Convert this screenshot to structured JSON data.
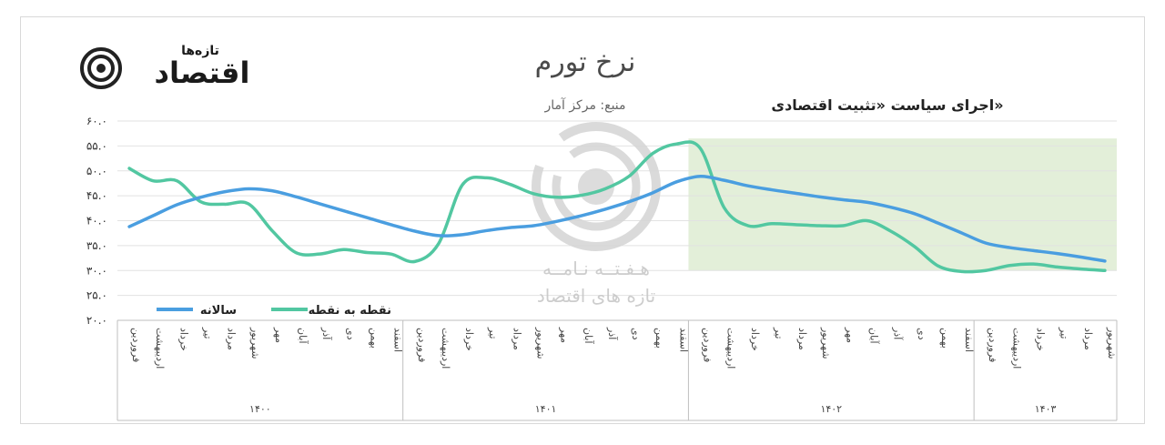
{
  "chart_data": {
    "type": "line",
    "title": "نرخ تورم",
    "subtitle": "منبع: مرکز آمار",
    "annotation": "اجرای سیاست «تثبیت اقتصادی»",
    "ylim": [
      20,
      60
    ],
    "yticks": [
      "۲۰.۰",
      "۲۵.۰",
      "۳۰.۰",
      "۳۵.۰",
      "۴۰.۰",
      "۴۵.۰",
      "۵۰.۰",
      "۵۵.۰",
      "۶۰.۰"
    ],
    "categories": [
      "فروردین",
      "اردیبهشت",
      "خرداد",
      "تیر",
      "مرداد",
      "شهریور",
      "مهر",
      "آبان",
      "آذر",
      "دی",
      "بهمن",
      "اسفند",
      "فروردین",
      "اردیبهشت",
      "خرداد",
      "تیر",
      "مرداد",
      "شهریور",
      "مهر",
      "آبان",
      "آذر",
      "دی",
      "بهمن",
      "اسفند",
      "فروردین",
      "اردیبهشت",
      "خرداد",
      "تیر",
      "مرداد",
      "شهریور",
      "مهر",
      "آبان",
      "آذر",
      "دی",
      "بهمن",
      "اسفند",
      "فروردین",
      "اردیبهشت",
      "خرداد",
      "تیر",
      "مرداد",
      "شهریور"
    ],
    "groups": [
      {
        "label": "۱۴۰۰",
        "count": 12
      },
      {
        "label": "۱۴۰۱",
        "count": 12
      },
      {
        "label": "۱۴۰۲",
        "count": 12
      },
      {
        "label": "۱۴۰۳",
        "count": 6
      }
    ],
    "highlight": {
      "from_index": 24,
      "to_index": 41,
      "color": "#e3efd9"
    },
    "series": [
      {
        "name": "سالانه",
        "color": "#4a9ee0",
        "values": [
          38.8,
          41.0,
          43.2,
          44.7,
          45.8,
          46.4,
          46.0,
          44.8,
          43.4,
          42.0,
          40.6,
          39.2,
          37.9,
          37.0,
          37.2,
          38.0,
          38.6,
          39.0,
          39.9,
          41.0,
          42.3,
          43.8,
          45.6,
          47.8,
          48.9,
          48.1,
          47.0,
          46.2,
          45.5,
          44.8,
          44.2,
          43.7,
          42.7,
          41.4,
          39.5,
          37.5,
          35.5,
          34.6,
          34.0,
          33.4,
          32.7,
          31.9
        ]
      },
      {
        "name": "نقطه به نقطه",
        "color": "#52c7a1",
        "values": [
          50.5,
          48.0,
          48.0,
          43.8,
          43.3,
          43.4,
          38.0,
          33.6,
          33.3,
          34.2,
          33.6,
          33.3,
          31.8,
          35.4,
          47.2,
          48.6,
          47.3,
          45.4,
          44.7,
          45.1,
          46.4,
          48.9,
          53.5,
          55.4,
          54.5,
          42.6,
          39.0,
          39.4,
          39.2,
          39.0,
          39.0,
          40.0,
          37.9,
          34.8,
          30.9,
          29.8,
          30.0,
          31.0,
          31.3,
          30.7,
          30.3,
          30.0
        ]
      }
    ],
    "legend": "bottom-left"
  },
  "watermark": {
    "line1": "هـفـتــه نـامــه",
    "line2": "تازه های اقتصاد"
  },
  "logo": {
    "small": "تازه‌ها",
    "big": "اقتصاد"
  }
}
